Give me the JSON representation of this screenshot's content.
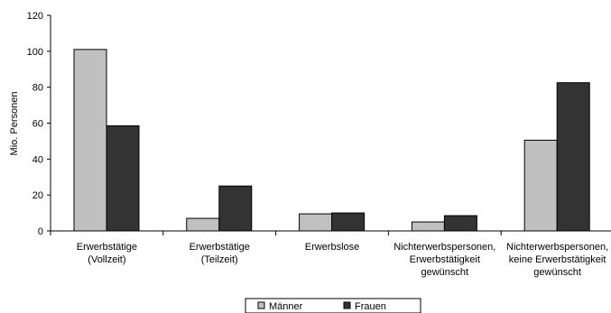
{
  "chart_data": {
    "type": "bar",
    "ylabel": "Mio. Personen",
    "ylim": [
      0,
      120
    ],
    "yticks": [
      0,
      20,
      40,
      60,
      80,
      100,
      120
    ],
    "grid": false,
    "legend_position": "bottom",
    "categories": [
      [
        "Erwerbstätige",
        "(Vollzeit)"
      ],
      [
        "Erwerbstätige",
        "(Teilzeit)"
      ],
      [
        "Erwerbslose"
      ],
      [
        "Nichterwerbspersonen,",
        "Erwerbstätigkeit",
        "gewünscht"
      ],
      [
        "Nichterwerbspersonen,",
        "keine Erwerbstätigkeit",
        "gewünscht"
      ]
    ],
    "series": [
      {
        "name": "Männer",
        "color": "#c0c0c0",
        "values": [
          101,
          7,
          9.5,
          5,
          50.5
        ]
      },
      {
        "name": "Frauen",
        "color": "#333333",
        "values": [
          58.5,
          25,
          10,
          8.5,
          82.5
        ]
      }
    ]
  }
}
